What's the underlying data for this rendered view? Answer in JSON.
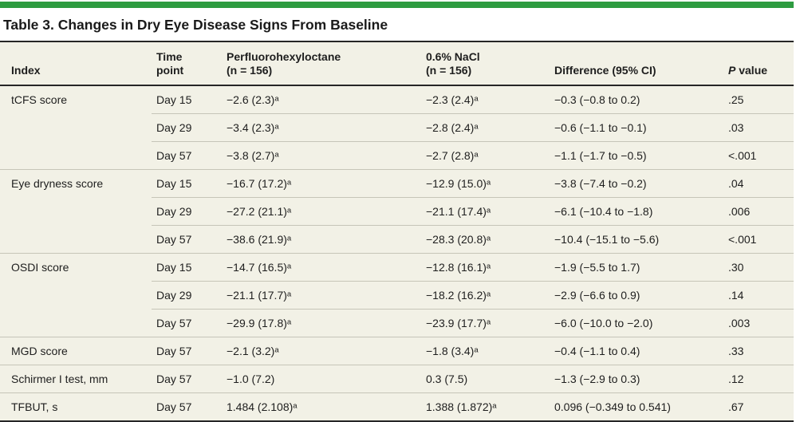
{
  "colors": {
    "accent_green": "#2e9c41",
    "table_background": "#f2f1e6",
    "light_rule": "#c6c5b8",
    "dark_rule": "#262626"
  },
  "title": "Table 3. Changes in Dry Eye Disease Signs From Baseline",
  "table": {
    "columns": [
      "Index",
      "Time\npoint",
      "Perfluorohexyloctane\n(n = 156)",
      "0.6% NaCl\n(n = 156)",
      "Difference (95% CI)"
    ],
    "p_header": {
      "italic": "P",
      "rest": " value"
    },
    "groups": [
      {
        "index": "tCFS score",
        "rows": [
          {
            "time": "Day 15",
            "drug": "−2.6 (2.3)ᵃ",
            "control": "−2.3 (2.4)ᵃ",
            "difference": "−0.3 (−0.8 to 0.2)",
            "p": ".25"
          },
          {
            "time": "Day 29",
            "drug": "−3.4 (2.3)ᵃ",
            "control": "−2.8 (2.4)ᵃ",
            "difference": "−0.6 (−1.1 to −0.1)",
            "p": ".03"
          },
          {
            "time": "Day 57",
            "drug": "−3.8 (2.7)ᵃ",
            "control": "−2.7 (2.8)ᵃ",
            "difference": "−1.1 (−1.7 to −0.5)",
            "p": "<.001"
          }
        ]
      },
      {
        "index": "Eye dryness score",
        "rows": [
          {
            "time": "Day 15",
            "drug": "−16.7 (17.2)ᵃ",
            "control": "−12.9 (15.0)ᵃ",
            "difference": "−3.8 (−7.4 to −0.2)",
            "p": ".04"
          },
          {
            "time": "Day 29",
            "drug": "−27.2 (21.1)ᵃ",
            "control": "−21.1 (17.4)ᵃ",
            "difference": "−6.1 (−10.4 to −1.8)",
            "p": ".006"
          },
          {
            "time": "Day 57",
            "drug": "−38.6 (21.9)ᵃ",
            "control": "−28.3 (20.8)ᵃ",
            "difference": "−10.4 (−15.1 to −5.6)",
            "p": "<.001"
          }
        ]
      },
      {
        "index": "OSDI score",
        "rows": [
          {
            "time": "Day 15",
            "drug": "−14.7 (16.5)ᵃ",
            "control": "−12.8 (16.1)ᵃ",
            "difference": "−1.9 (−5.5 to 1.7)",
            "p": ".30"
          },
          {
            "time": "Day 29",
            "drug": "−21.1 (17.7)ᵃ",
            "control": "−18.2 (16.2)ᵃ",
            "difference": "−2.9 (−6.6 to 0.9)",
            "p": ".14"
          },
          {
            "time": "Day 57",
            "drug": "−29.9 (17.8)ᵃ",
            "control": "−23.9 (17.7)ᵃ",
            "difference": "−6.0 (−10.0 to −2.0)",
            "p": ".003"
          }
        ]
      },
      {
        "index": "MGD score",
        "rows": [
          {
            "time": "Day 57",
            "drug": "−2.1 (3.2)ᵃ",
            "control": "−1.8 (3.4)ᵃ",
            "difference": "−0.4 (−1.1 to 0.4)",
            "p": ".33"
          }
        ]
      },
      {
        "index": "Schirmer I test, mm",
        "rows": [
          {
            "time": "Day 57",
            "drug": "−1.0 (7.2)",
            "control": "0.3 (7.5)",
            "difference": "−1.3 (−2.9 to 0.3)",
            "p": ".12"
          }
        ]
      },
      {
        "index": "TFBUT, s",
        "rows": [
          {
            "time": "Day 57",
            "drug": "1.484 (2.108)ᵃ",
            "control": "1.388 (1.872)ᵃ",
            "difference": "0.096 (−0.349 to 0.541)",
            "p": ".67"
          }
        ]
      }
    ]
  }
}
